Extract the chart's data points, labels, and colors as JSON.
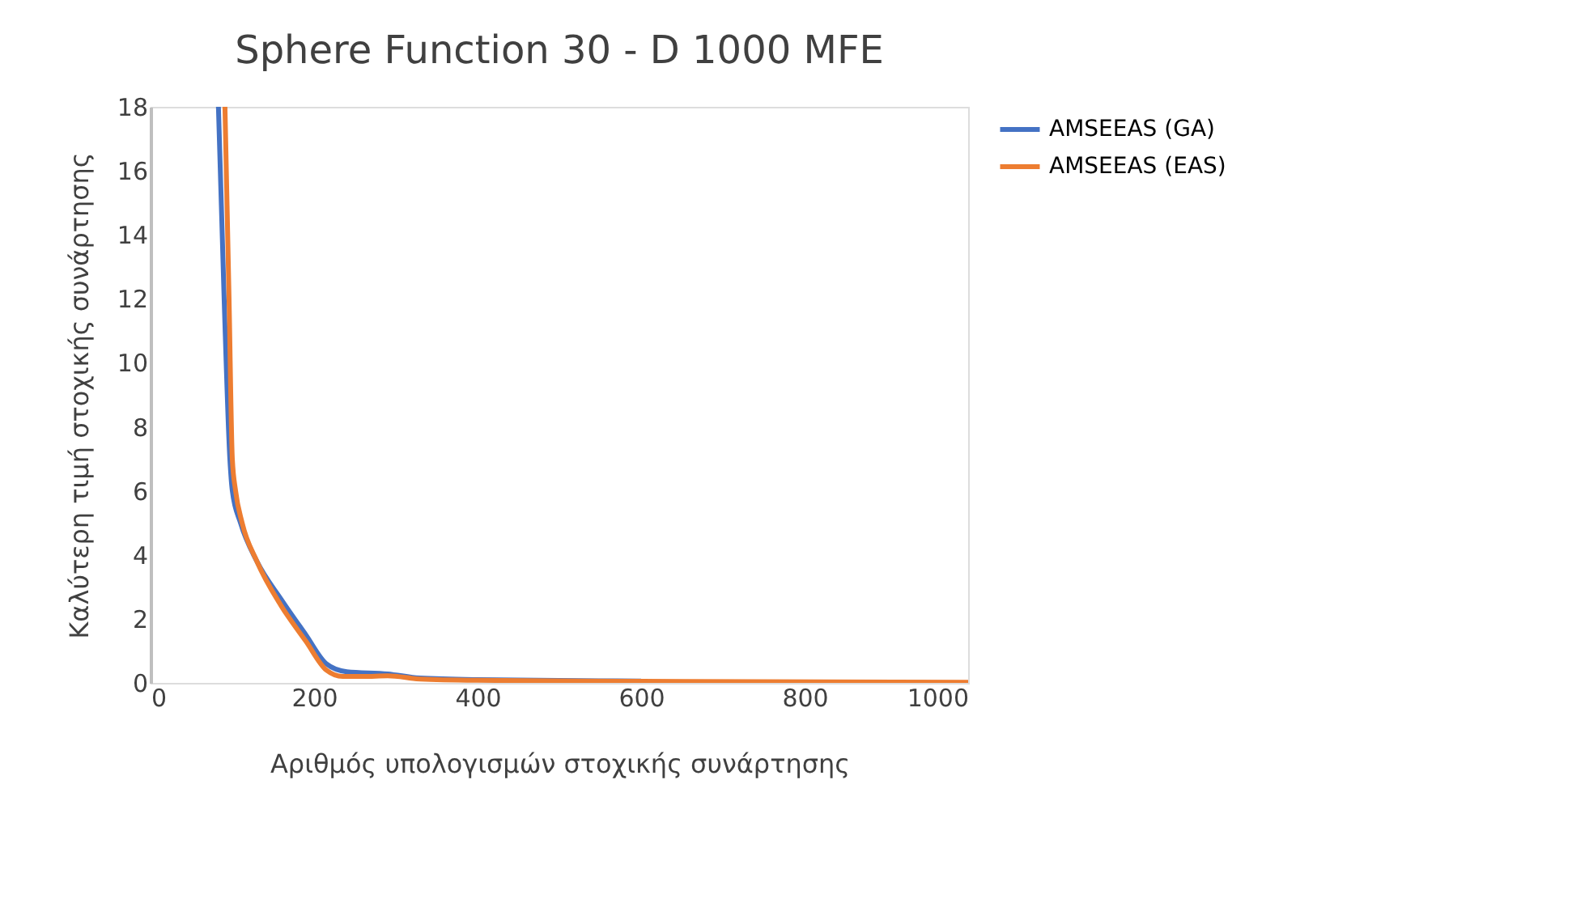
{
  "chart_data": {
    "type": "line",
    "title": "Sphere Function 30 - D 1000 MFE",
    "xlabel": "Αριθμός υπολογισμών στοχικής συνάρτησης",
    "ylabel": "Καλύτερη τιμή στοχικής συνάρτησης",
    "xlim": [
      0,
      1000
    ],
    "xticks": [
      0,
      200,
      400,
      600,
      800,
      1000
    ],
    "ylim": [
      0,
      18
    ],
    "yticks": [
      0,
      2,
      4,
      6,
      8,
      10,
      12,
      14,
      16,
      18
    ],
    "grid": false,
    "legend": "right",
    "marker": "none",
    "line_style": "solid",
    "series": [
      {
        "name": "AMSEEAS (GA)",
        "color": "#4472c4",
        "x": [
          83,
          90,
          97,
          100,
          110,
          130,
          160,
          190,
          215,
          240,
          290,
          330,
          400,
          600
        ],
        "values": [
          18,
          12,
          7,
          6,
          5,
          3.8,
          2.6,
          1.5,
          0.6,
          0.35,
          0.28,
          0.15,
          0.1,
          0.06
        ]
      },
      {
        "name": "AMSEEAS (EAS)",
        "color": "#ed7d31",
        "x": [
          91,
          96,
          100,
          104,
          112,
          130,
          160,
          190,
          215,
          235,
          260,
          290,
          330,
          400,
          600,
          1000
        ],
        "values": [
          18,
          12,
          7,
          6,
          5,
          3.8,
          2.4,
          1.3,
          0.4,
          0.2,
          0.2,
          0.22,
          0.12,
          0.08,
          0.05,
          0.02
        ]
      }
    ]
  }
}
